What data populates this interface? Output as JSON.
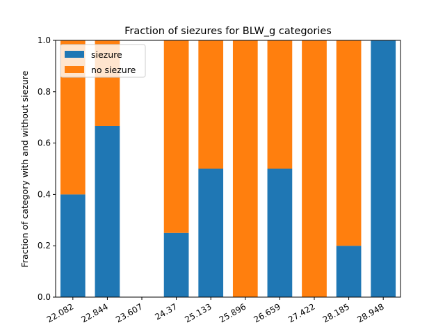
{
  "chart_data": {
    "type": "bar",
    "stacked": true,
    "title": "Fraction of siezures for BLW_g categories",
    "ylabel": "Fraction of category with and without siezure",
    "categories": [
      "22.082",
      "22.844",
      "23.607",
      "24.37",
      "25.133",
      "25.896",
      "26.659",
      "27.422",
      "28.185",
      "28.948"
    ],
    "series": [
      {
        "name": "siezure",
        "color": "#1f77b4",
        "values": [
          0.4,
          0.6667,
          0,
          0.25,
          0.5,
          0,
          0.5,
          0,
          0.2,
          1.0
        ]
      },
      {
        "name": "no siezure",
        "color": "#ff7f0e",
        "values": [
          0.6,
          0.3333,
          0,
          0.75,
          0.5,
          1.0,
          0.5,
          1.0,
          0.8,
          0.0
        ]
      }
    ],
    "ylim": [
      0,
      1.0
    ],
    "yticks": [
      "0.0",
      "0.2",
      "0.4",
      "0.6",
      "0.8",
      "1.0"
    ],
    "grid": false,
    "legend_position": "top-left"
  }
}
